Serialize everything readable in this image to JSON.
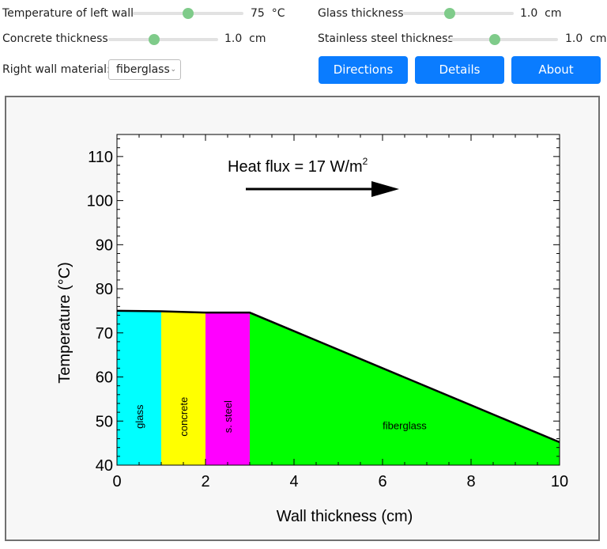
{
  "controls": {
    "left_wall_temp": {
      "label": "Temperature of left wall",
      "value": "75",
      "unit": "°C",
      "fraction": 0.5
    },
    "concrete_thickness": {
      "label": "Concrete thickness",
      "value": "1.0",
      "unit": "cm",
      "fraction": 0.42
    },
    "glass_thickness": {
      "label": "Glass thickness",
      "value": "1.0",
      "unit": "cm",
      "fraction": 0.42
    },
    "steel_thickness": {
      "label": "Stainless steel thickness",
      "value": "1.0",
      "unit": "cm",
      "fraction": 0.42
    },
    "right_wall": {
      "label": "Right wall material:",
      "selected": "fiberglass"
    }
  },
  "buttons": {
    "directions": "Directions",
    "details": "Details",
    "about": "About"
  },
  "chart_data": {
    "type": "area",
    "xlabel": "Wall thickness (cm)",
    "ylabel": "Temperature (°C)",
    "xlim": [
      0,
      10
    ],
    "ylim": [
      40,
      115
    ],
    "xticks": [
      0,
      2,
      4,
      6,
      8,
      10
    ],
    "yticks": [
      40,
      50,
      60,
      70,
      80,
      90,
      100,
      110
    ],
    "annotation": {
      "text": "Heat flux = 17 W/m",
      "superscript": "2"
    },
    "layers": [
      {
        "name": "glass",
        "x_start": 0,
        "x_end": 1,
        "color": "#00ffff"
      },
      {
        "name": "concrete",
        "x_start": 1,
        "x_end": 2,
        "color": "#ffff00"
      },
      {
        "name": "s. steel",
        "x_start": 2,
        "x_end": 3,
        "color": "#ff00ff"
      },
      {
        "name": "fiberglass",
        "x_start": 3,
        "x_end": 10,
        "color": "#00ff00"
      }
    ],
    "temperature_profile": {
      "x": [
        0,
        1,
        2,
        3,
        10
      ],
      "y": [
        75,
        74.9,
        74.6,
        74.6,
        45.2
      ]
    }
  }
}
